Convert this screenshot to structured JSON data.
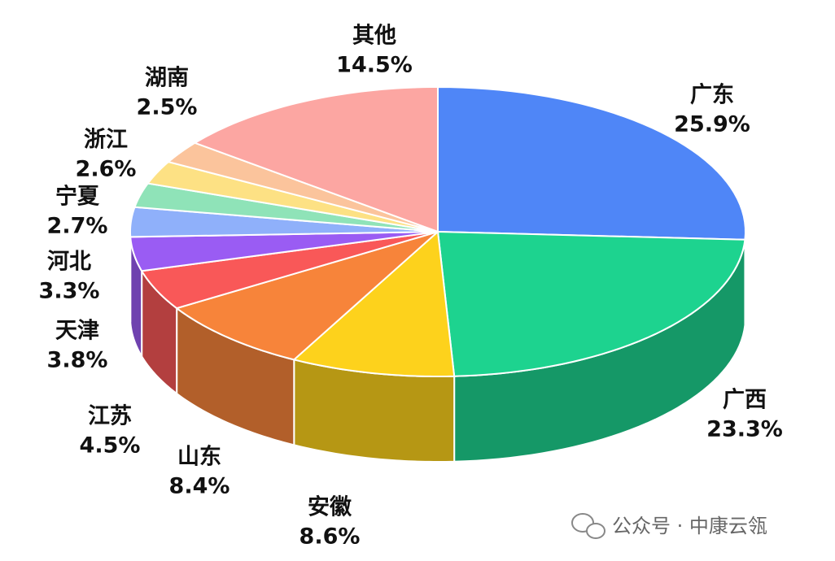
{
  "chart_data": {
    "type": "pie3d",
    "categories": [
      "广东",
      "广西",
      "安徽",
      "山东",
      "江苏",
      "天津",
      "河北",
      "宁夏",
      "浙江",
      "湖南",
      "其他"
    ],
    "values": [
      25.9,
      23.3,
      8.6,
      8.4,
      4.5,
      3.8,
      3.3,
      2.7,
      2.6,
      2.5,
      14.5
    ],
    "value_labels": [
      "25.9%",
      "23.3%",
      "8.6%",
      "8.4%",
      "4.5%",
      "3.8%",
      "3.3%",
      "2.7%",
      "2.6%",
      "2.5%",
      "14.5%"
    ],
    "colors": [
      "#4f86f7",
      "#1dd38f",
      "#fdd21c",
      "#f7843a",
      "#f95858",
      "#9a5cf3",
      "#8fb0fa",
      "#8fe3b8",
      "#fde184",
      "#fbc49c",
      "#fca6a2"
    ],
    "watermark": "公众号 · 中康云瓴"
  }
}
